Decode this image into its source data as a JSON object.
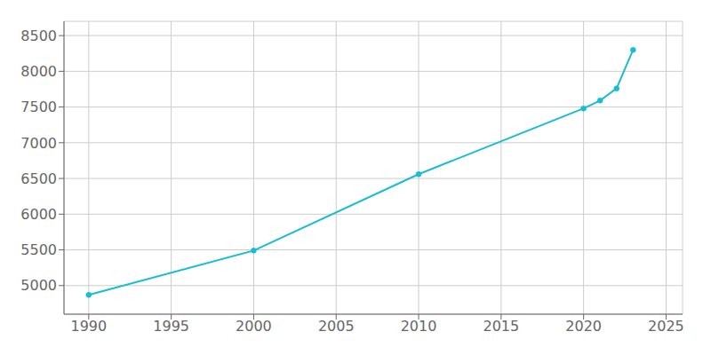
{
  "chart_data": {
    "type": "line",
    "x": [
      1990,
      2000,
      2010,
      2020,
      2021,
      2022,
      2023
    ],
    "values": [
      4870,
      5490,
      6560,
      7480,
      7590,
      7760,
      8300
    ],
    "color": "#17becf",
    "marker": "circle",
    "xlim": [
      1988.5,
      2026.0
    ],
    "ylim": [
      4600,
      8700
    ],
    "xticks": [
      1990,
      1995,
      2000,
      2005,
      2010,
      2015,
      2020,
      2025
    ],
    "yticks": [
      5000,
      5500,
      6000,
      6500,
      7000,
      7500,
      8000,
      8500
    ],
    "grid": true
  }
}
